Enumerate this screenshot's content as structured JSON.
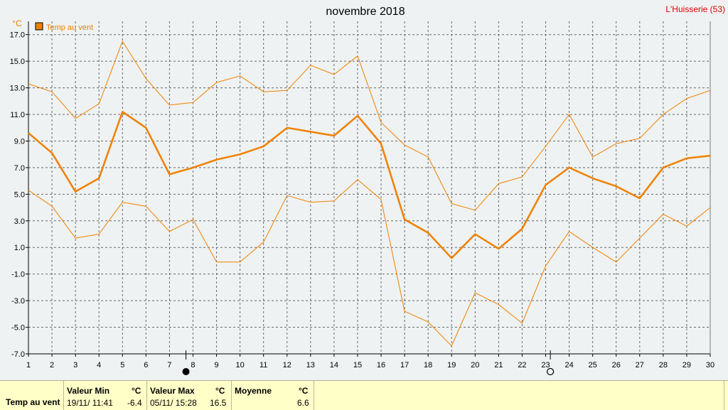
{
  "title": "novembre 2018",
  "location": "L'Huisserie (53)",
  "colors": {
    "series": "#f08000",
    "title_location": "#dd0000",
    "grid": "#6a6a6a",
    "background": "#eef2f2",
    "footer_bg": "#ffffc8"
  },
  "moon_phases": [
    {
      "day": 7.7,
      "phase": "new-moon"
    },
    {
      "day": 23.2,
      "phase": "full-moon"
    }
  ],
  "chart_data": {
    "type": "line",
    "title": "novembre 2018",
    "ylabel": "°C",
    "xlabel": "",
    "x": [
      1,
      2,
      3,
      4,
      5,
      6,
      7,
      8,
      9,
      10,
      11,
      12,
      13,
      14,
      15,
      16,
      17,
      18,
      19,
      20,
      21,
      22,
      23,
      24,
      25,
      26,
      27,
      28,
      29,
      30
    ],
    "xlim": [
      1,
      30
    ],
    "ylim": [
      -7.0,
      18.0
    ],
    "y_ticks": [
      17.0,
      15.0,
      13.0,
      11.0,
      9.0,
      7.0,
      5.0,
      3.0,
      1.0,
      -1.0,
      -3.0,
      -5.0,
      -7.0
    ],
    "y_tick_labels": [
      "17.0",
      "15.0",
      "13.0",
      "11.0",
      "9.0",
      "7.0",
      "5.0",
      "3.0",
      "1.0",
      "-1.0",
      "-3.0",
      "-5.0",
      "-7.0"
    ],
    "grid": true,
    "legend_position": "top-left",
    "series": [
      {
        "name": "Temp au vent",
        "role": "mean",
        "values": [
          9.6,
          8.1,
          5.2,
          6.2,
          11.2,
          10.0,
          6.5,
          7.0,
          7.6,
          8.0,
          8.6,
          10.0,
          9.7,
          9.4,
          10.9,
          8.8,
          3.1,
          2.1,
          0.2,
          2.0,
          0.9,
          2.4,
          5.7,
          7.0,
          6.2,
          5.6,
          4.7,
          7.0,
          7.7,
          7.9
        ]
      },
      {
        "role": "max",
        "values": [
          13.3,
          12.7,
          10.7,
          11.8,
          16.5,
          13.7,
          11.7,
          11.9,
          13.4,
          13.9,
          12.7,
          12.8,
          14.7,
          14.0,
          15.4,
          10.4,
          8.7,
          7.8,
          4.3,
          3.8,
          5.8,
          6.3,
          8.6,
          11.0,
          7.8,
          8.8,
          9.2,
          11.0,
          12.2,
          12.8
        ]
      },
      {
        "role": "min",
        "values": [
          5.3,
          4.1,
          1.7,
          2.0,
          4.4,
          4.1,
          2.2,
          3.1,
          -0.1,
          -0.1,
          1.4,
          4.9,
          4.4,
          4.5,
          6.1,
          4.6,
          -3.8,
          -4.6,
          -6.4,
          -2.4,
          -3.3,
          -4.7,
          -0.4,
          2.2,
          1.0,
          -0.1,
          1.7,
          3.5,
          2.6,
          4.0
        ]
      }
    ]
  },
  "summary": {
    "row_label": "Temp au vent",
    "min": {
      "header": "Valeur Min",
      "unit": "°C",
      "date": "19/11/  11:41",
      "value": "-6.4"
    },
    "max": {
      "header": "Valeur Max",
      "unit": "°C",
      "date": "05/11/  15:28",
      "value": "16.5"
    },
    "mean": {
      "header": "Moyenne",
      "unit": "°C",
      "value": "6.6"
    }
  }
}
